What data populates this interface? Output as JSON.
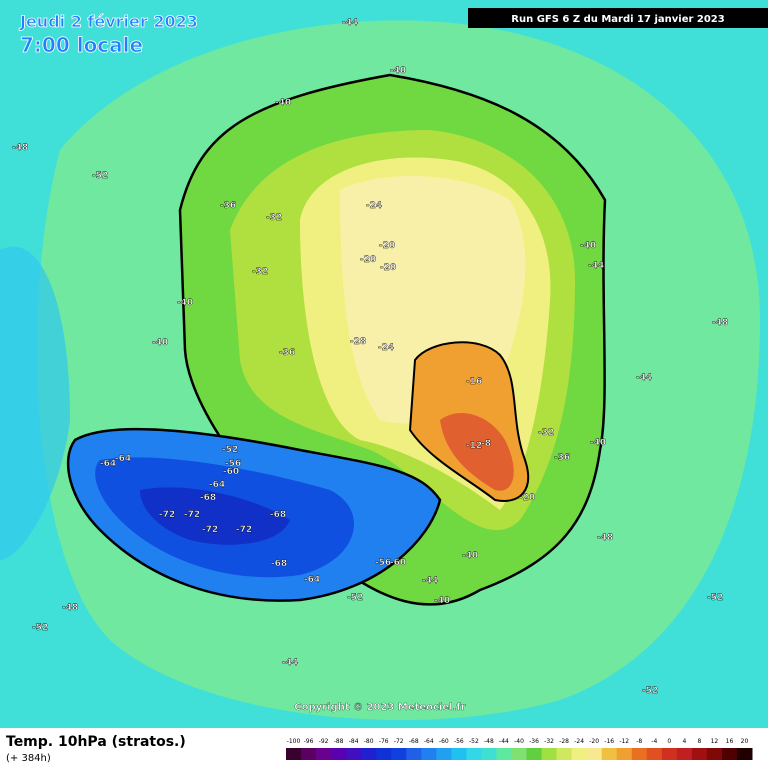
{
  "header": {
    "date": "Jeudi 2 février 2023",
    "time": "7:00 locale",
    "run": "Run GFS 6 Z du Mardi 17 janvier 2023"
  },
  "footer": {
    "title": "Temp. 10hPa (stratos.)",
    "lead": "(+ 384h)",
    "copyright": "Copyright © 2023 Meteociel.fr"
  },
  "colorbar": {
    "labels": [
      "-100",
      "-96",
      "-92",
      "-88",
      "-84",
      "-80",
      "-76",
      "-72",
      "-68",
      "-64",
      "-60",
      "-56",
      "-52",
      "-48",
      "-44",
      "-40",
      "-36",
      "-32",
      "-28",
      "-24",
      "-20",
      "-16",
      "-12",
      "-8",
      "-4",
      "0",
      "4",
      "8",
      "12",
      "16",
      "20"
    ],
    "colors": [
      "#3a0030",
      "#5a0060",
      "#6a0090",
      "#5a00b0",
      "#4010c0",
      "#2020d0",
      "#1030d8",
      "#1040e0",
      "#2060e8",
      "#2080f0",
      "#20a0f0",
      "#20c0f0",
      "#30d8e8",
      "#40e0d0",
      "#60e8a0",
      "#80e070",
      "#60d040",
      "#a0e040",
      "#d0e860",
      "#f0f080",
      "#f8e890",
      "#f0c040",
      "#f0a030",
      "#e87020",
      "#e05020",
      "#d03020",
      "#c02020",
      "#a01010",
      "#800808",
      "#500000",
      "#200000"
    ]
  },
  "contour_labels": [
    "-48",
    "-44",
    "-52",
    "-48",
    "-40",
    "-36",
    "-32",
    "-24",
    "-20",
    "-20",
    "-20",
    "-28",
    "-24",
    "-16",
    "-12",
    "-8",
    "-20",
    "-32",
    "-36",
    "-40",
    "-44",
    "-44",
    "-40",
    "-36",
    "-40",
    "-32",
    "-40",
    "-40",
    "-64",
    "-64",
    "-72",
    "-72",
    "-72",
    "-68",
    "-68",
    "-64",
    "-72",
    "-68",
    "-64",
    "-60",
    "-56",
    "-52",
    "-56",
    "-60",
    "-52",
    "-40",
    "-44",
    "-40",
    "-48",
    "-52",
    "-52",
    "-48",
    "-44",
    "-52"
  ]
}
